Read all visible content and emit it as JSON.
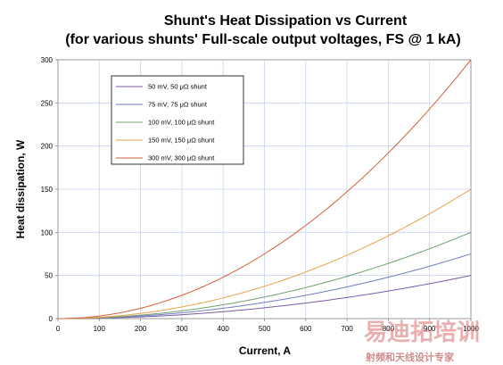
{
  "chart_data": {
    "type": "line",
    "title": "Shunt's Heat Dissipation vs Current",
    "subtitle": "(for various shunts' Full-scale output voltages, FS @ 1 kA)",
    "xlabel": "Current, A",
    "ylabel": "Heat dissipation, W",
    "xlim": [
      0,
      1000
    ],
    "ylim": [
      0,
      300
    ],
    "xticks": [
      0,
      100,
      200,
      300,
      400,
      500,
      600,
      700,
      800,
      900,
      1000
    ],
    "yticks": [
      0,
      50,
      100,
      150,
      200,
      250,
      300
    ],
    "grid": true,
    "legend_position": "top-left",
    "x": [
      0,
      100,
      200,
      300,
      400,
      500,
      600,
      700,
      800,
      900,
      1000
    ],
    "series": [
      {
        "name": "50 mV, 50 μΩ shunt",
        "color": "#7a5aa8",
        "values": [
          0,
          0.5,
          2,
          4.5,
          8,
          12.5,
          18,
          24.5,
          32,
          40.5,
          50
        ]
      },
      {
        "name": "75 mV, 75 μΩ shunt",
        "color": "#6f7fc0",
        "values": [
          0,
          0.75,
          3,
          6.75,
          12,
          18.75,
          27,
          36.75,
          48,
          60.75,
          75
        ]
      },
      {
        "name": "100 mV, 100 μΩ shunt",
        "color": "#6f9f6f",
        "values": [
          0,
          1,
          4,
          9,
          16,
          25,
          36,
          49,
          64,
          81,
          100
        ]
      },
      {
        "name": "150 mV, 150 μΩ shunt",
        "color": "#e8a24a",
        "values": [
          0,
          1.5,
          6,
          13.5,
          24,
          37.5,
          54,
          73.5,
          96,
          121.5,
          150
        ]
      },
      {
        "name": "300 mV, 300 μΩ shunt",
        "color": "#d4603a",
        "values": [
          0,
          3,
          12,
          27,
          48,
          75,
          108,
          147,
          192,
          243,
          300
        ]
      }
    ]
  },
  "watermark": {
    "main": "易迪拓培训",
    "sub": "射频和天线设计专家"
  }
}
